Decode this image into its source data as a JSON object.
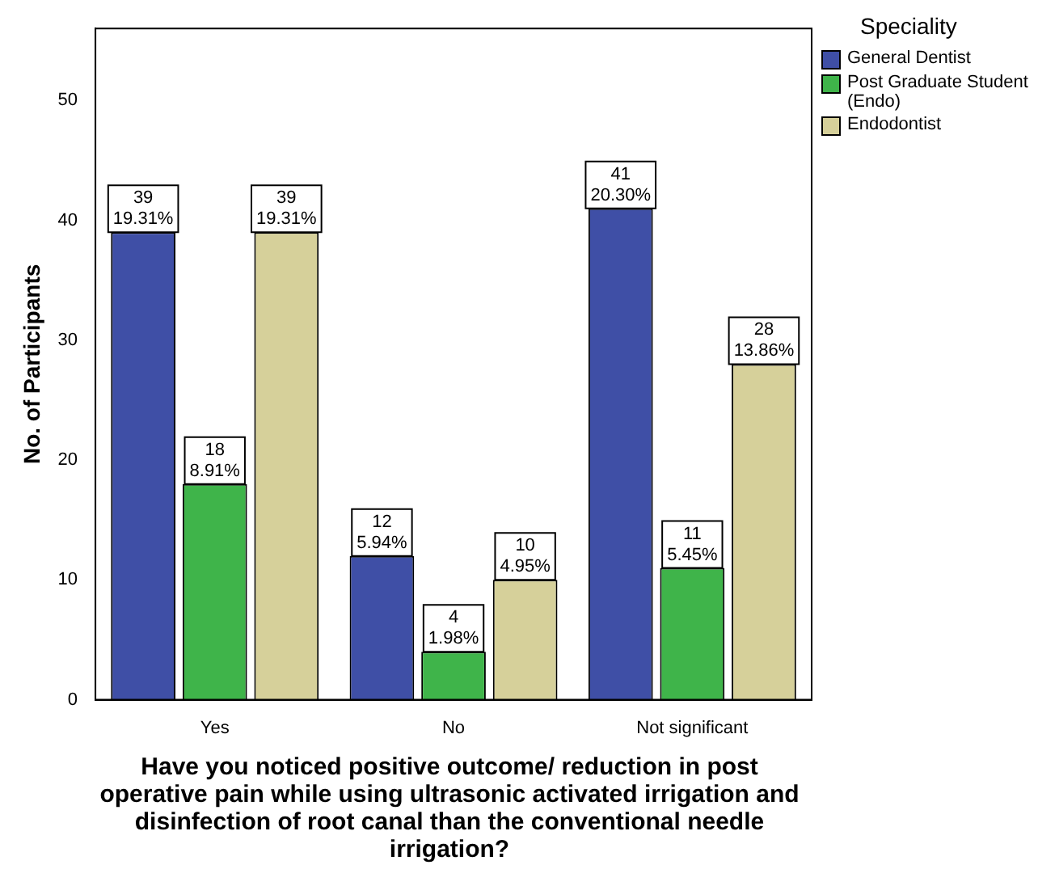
{
  "chart_data": {
    "type": "bar",
    "xlabel": "Have you noticed positive outcome/ reduction in post operative pain while using ultrasonic activated irrigation and disinfection of root canal than the conventional needle irrigation?",
    "ylabel": "No. of Participants",
    "legend_title": "Speciality",
    "legend": "top right",
    "categories": [
      "Yes",
      "No",
      "Not significant"
    ],
    "series": [
      {
        "name": "General Dentist",
        "color": "#3f4fa6",
        "values": [
          39,
          12,
          41
        ],
        "value_labels": [
          "39\n19.31%",
          "12\n5.94%",
          "41\n20.30%"
        ]
      },
      {
        "name": "Post Graduate Student (Endo)",
        "color": "#3fb44a",
        "values": [
          18,
          4,
          11
        ],
        "value_labels": [
          "18\n8.91%",
          "4\n1.98%",
          "11\n5.45%"
        ]
      },
      {
        "name": "Endodontist",
        "color": "#d6d09a",
        "values": [
          39,
          10,
          28
        ],
        "value_labels": [
          "39\n19.31%",
          "10\n4.95%",
          "28\n13.86%"
        ]
      }
    ],
    "ylim": [
      0,
      56
    ],
    "yticks": [
      0,
      10,
      20,
      30,
      40,
      50
    ],
    "grid": false
  }
}
